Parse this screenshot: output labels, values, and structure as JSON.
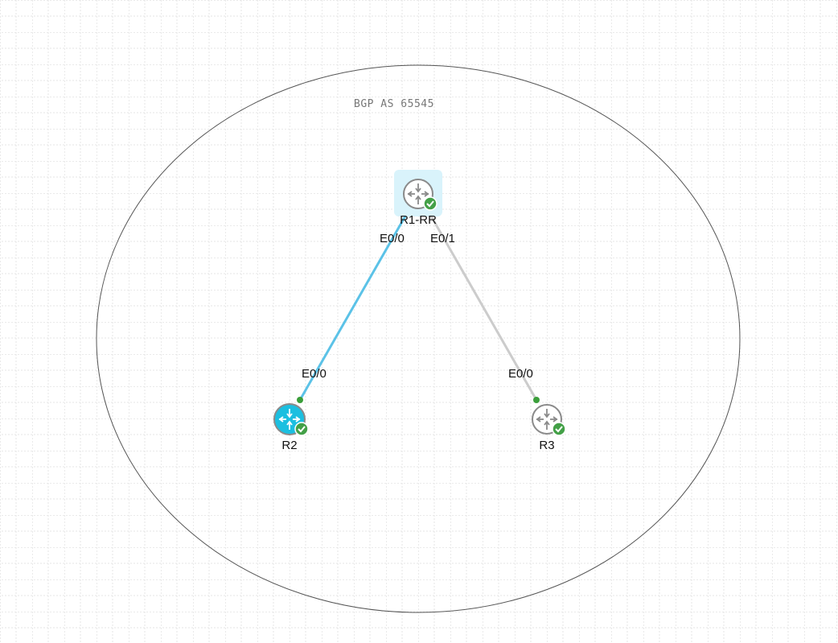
{
  "area": {
    "label": "BGP AS 65545"
  },
  "colors": {
    "grid": "#d6d6d6",
    "ellipse_stroke": "#555555",
    "area_label": "#777777",
    "label_text": "#111111",
    "link_active": "#5bc2e7",
    "link_idle": "#cccccc",
    "endpoint": "#3a9e3a",
    "status_ok": "#43a047",
    "router_gray": "#8a8a8a",
    "router_cyan": "#1bbfe0",
    "selection_bg": "#d9f3fb"
  },
  "nodes": [
    {
      "id": "r1",
      "label": "R1-RR",
      "icon": "router-icon",
      "status": "running-check-icon",
      "selected": true
    },
    {
      "id": "r2",
      "label": "R2",
      "icon": "router-icon",
      "status": "running-check-icon",
      "selected": false,
      "highlight": true
    },
    {
      "id": "r3",
      "label": "R3",
      "icon": "router-icon",
      "status": "running-check-icon",
      "selected": false
    }
  ],
  "links": [
    {
      "id": "r1-r2",
      "from": "R1-RR",
      "from_port": "E0/0",
      "to": "R2",
      "to_port": "E0/0",
      "state": "active"
    },
    {
      "id": "r1-r3",
      "from": "R1-RR",
      "from_port": "E0/1",
      "to": "R3",
      "to_port": "E0/0",
      "state": "idle"
    }
  ]
}
